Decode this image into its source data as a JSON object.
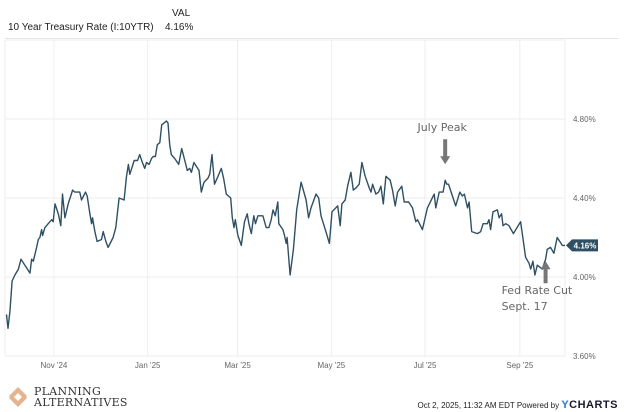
{
  "header": {
    "col_label": "VAL",
    "series_name": "10 Year Treasury Rate (I:10YTR)",
    "series_value": "4.16%"
  },
  "chart_data": {
    "type": "line",
    "title": "10 Year Treasury Rate (I:10YTR)",
    "xlabel": "",
    "ylabel": "",
    "x_unit": "days since start (approx. Sep 20, 2024)",
    "ylim": [
      3.6,
      4.96
    ],
    "xlim": [
      0,
      372
    ],
    "grid": true,
    "y_ticks": [
      {
        "value": 3.6,
        "label": "3.60%"
      },
      {
        "value": 4.0,
        "label": "4.00%"
      },
      {
        "value": 4.4,
        "label": "4.40%"
      },
      {
        "value": 4.8,
        "label": "4.80%"
      }
    ],
    "x_ticks": [
      {
        "value": 32.5,
        "label": "Nov '24"
      },
      {
        "value": 94.8,
        "label": "Jan '25"
      },
      {
        "value": 154.5,
        "label": "Mar '25"
      },
      {
        "value": 216.8,
        "label": "May '25"
      },
      {
        "value": 279,
        "label": "Jul '25"
      },
      {
        "value": 342,
        "label": "Sep '25"
      }
    ],
    "last_value_label": "4.16%",
    "line_color": "#2f4f63",
    "series": [
      {
        "name": "10 Year Treasury Rate",
        "points": [
          [
            1,
            3.81
          ],
          [
            2,
            3.74
          ],
          [
            3.3,
            3.83
          ],
          [
            4.7,
            3.98
          ],
          [
            6.6,
            4.01
          ],
          [
            8.9,
            4.04
          ],
          [
            10.6,
            4.09
          ],
          [
            16.6,
            4.02
          ],
          [
            17.7,
            4.09
          ],
          [
            18.8,
            4.08
          ],
          [
            21,
            4.15
          ],
          [
            22.1,
            4.19
          ],
          [
            23.2,
            4.2
          ],
          [
            24.3,
            4.24
          ],
          [
            25,
            4.21
          ],
          [
            26.5,
            4.25
          ],
          [
            28.7,
            4.27
          ],
          [
            31,
            4.29
          ],
          [
            32,
            4.28
          ],
          [
            33.2,
            4.37
          ],
          [
            35.4,
            4.32
          ],
          [
            37.1,
            4.26
          ],
          [
            38.2,
            4.42
          ],
          [
            39.8,
            4.3
          ],
          [
            42,
            4.37
          ],
          [
            44.9,
            4.44
          ],
          [
            46.4,
            4.43
          ],
          [
            49.7,
            4.43
          ],
          [
            50.8,
            4.39
          ],
          [
            53.5,
            4.43
          ],
          [
            54.6,
            4.41
          ],
          [
            56.4,
            4.32
          ],
          [
            57.5,
            4.27
          ],
          [
            58.1,
            4.3
          ],
          [
            59.7,
            4.23
          ],
          [
            61.2,
            4.18
          ],
          [
            64.1,
            4.19
          ],
          [
            65.2,
            4.23
          ],
          [
            67,
            4.18
          ],
          [
            68.5,
            4.15
          ],
          [
            71.8,
            4.2
          ],
          [
            73.6,
            4.25
          ],
          [
            75.8,
            4.4
          ],
          [
            79.1,
            4.39
          ],
          [
            80.7,
            4.51
          ],
          [
            82,
            4.57
          ],
          [
            82.9,
            4.52
          ],
          [
            85.8,
            4.59
          ],
          [
            88,
            4.59
          ],
          [
            89.5,
            4.62
          ],
          [
            91.3,
            4.58
          ],
          [
            92.8,
            4.55
          ],
          [
            94,
            4.58
          ],
          [
            95.7,
            4.57
          ],
          [
            97.3,
            4.6
          ],
          [
            98.4,
            4.61
          ],
          [
            99.9,
            4.61
          ],
          [
            101.2,
            4.67
          ],
          [
            102.8,
            4.68
          ],
          [
            104.1,
            4.77
          ],
          [
            107.2,
            4.79
          ],
          [
            108.3,
            4.78
          ],
          [
            109.4,
            4.67
          ],
          [
            110.5,
            4.62
          ],
          [
            112.7,
            4.6
          ],
          [
            115.4,
            4.57
          ],
          [
            117.4,
            4.65
          ],
          [
            119.8,
            4.58
          ],
          [
            121.1,
            4.54
          ],
          [
            122.7,
            4.55
          ],
          [
            123.8,
            4.53
          ],
          [
            125.5,
            4.58
          ],
          [
            128.9,
            4.54
          ],
          [
            130.4,
            4.43
          ],
          [
            132.2,
            4.48
          ],
          [
            134.8,
            4.5
          ],
          [
            136,
            4.52
          ],
          [
            137.5,
            4.62
          ],
          [
            139.2,
            4.47
          ],
          [
            141.5,
            4.51
          ],
          [
            143.7,
            4.55
          ],
          [
            145.2,
            4.5
          ],
          [
            147,
            4.42
          ],
          [
            149.9,
            4.4
          ],
          [
            151,
            4.3
          ],
          [
            152.1,
            4.25
          ],
          [
            153,
            4.29
          ],
          [
            154.7,
            4.21
          ],
          [
            157,
            4.16
          ],
          [
            159.1,
            4.28
          ],
          [
            160.9,
            4.32
          ],
          [
            162,
            4.27
          ],
          [
            163.6,
            4.22
          ],
          [
            165.3,
            4.31
          ],
          [
            166.4,
            4.27
          ],
          [
            168,
            4.31
          ],
          [
            171.3,
            4.31
          ],
          [
            173.5,
            4.25
          ],
          [
            175.3,
            4.25
          ],
          [
            176.8,
            4.29
          ],
          [
            178,
            4.34
          ],
          [
            179.5,
            4.31
          ],
          [
            181.2,
            4.38
          ],
          [
            181.9,
            4.27
          ],
          [
            184.6,
            4.24
          ],
          [
            185.7,
            4.21
          ],
          [
            186.8,
            4.17
          ],
          [
            187.4,
            4.2
          ],
          [
            189.4,
            4.01
          ],
          [
            191.6,
            4.14
          ],
          [
            193.8,
            4.34
          ],
          [
            196.7,
            4.48
          ],
          [
            200,
            4.39
          ],
          [
            201.7,
            4.3
          ],
          [
            203.3,
            4.35
          ],
          [
            206.6,
            4.42
          ],
          [
            208.4,
            4.4
          ],
          [
            209.9,
            4.31
          ],
          [
            213.2,
            4.23
          ],
          [
            215.5,
            4.17
          ],
          [
            217.2,
            4.33
          ],
          [
            221,
            4.36
          ],
          [
            222.7,
            4.26
          ],
          [
            223.8,
            4.37
          ],
          [
            226,
            4.39
          ],
          [
            227.6,
            4.46
          ],
          [
            229.8,
            4.53
          ],
          [
            231.4,
            4.44
          ],
          [
            233.1,
            4.45
          ],
          [
            235.3,
            4.47
          ],
          [
            237.1,
            4.58
          ],
          [
            239.3,
            4.51
          ],
          [
            242,
            4.45
          ],
          [
            243.1,
            4.43
          ],
          [
            244.2,
            4.47
          ],
          [
            246.4,
            4.42
          ],
          [
            248.2,
            4.43
          ],
          [
            249.7,
            4.46
          ],
          [
            251.3,
            4.37
          ],
          [
            253,
            4.51
          ],
          [
            255.9,
            4.49
          ],
          [
            257.4,
            4.44
          ],
          [
            259.2,
            4.36
          ],
          [
            260.8,
            4.43
          ],
          [
            263.6,
            4.46
          ],
          [
            265.2,
            4.38
          ],
          [
            268.1,
            4.38
          ],
          [
            270.7,
            4.35
          ],
          [
            272.9,
            4.28
          ],
          [
            274,
            4.29
          ],
          [
            277.3,
            4.24
          ],
          [
            280.6,
            4.35
          ],
          [
            285.1,
            4.42
          ],
          [
            286.2,
            4.35
          ],
          [
            288.4,
            4.43
          ],
          [
            291,
            4.43
          ],
          [
            292.4,
            4.49
          ],
          [
            293.5,
            4.47
          ],
          [
            294.6,
            4.47
          ],
          [
            296.8,
            4.42
          ],
          [
            299.4,
            4.36
          ],
          [
            302.1,
            4.43
          ],
          [
            303.8,
            4.41
          ],
          [
            305.2,
            4.42
          ],
          [
            307.2,
            4.35
          ],
          [
            308.3,
            4.38
          ],
          [
            310,
            4.23
          ],
          [
            313.8,
            4.22
          ],
          [
            316,
            4.23
          ],
          [
            317.6,
            4.27
          ],
          [
            320.4,
            4.27
          ],
          [
            321.5,
            4.29
          ],
          [
            322.6,
            4.24
          ],
          [
            324.2,
            4.33
          ],
          [
            327.1,
            4.34
          ],
          [
            328.2,
            4.3
          ],
          [
            329.9,
            4.32
          ],
          [
            330.8,
            4.26
          ],
          [
            332.6,
            4.27
          ],
          [
            334.8,
            4.26
          ],
          [
            337.7,
            4.22
          ],
          [
            342.5,
            4.28
          ],
          [
            345.8,
            4.1
          ],
          [
            348.1,
            4.07
          ],
          [
            349.2,
            4.04
          ],
          [
            350.7,
            4.08
          ],
          [
            352,
            4.01
          ],
          [
            353.6,
            4.06
          ],
          [
            356.9,
            4.04
          ],
          [
            359.1,
            4.09
          ],
          [
            360.2,
            4.14
          ],
          [
            362.4,
            4.15
          ],
          [
            364.6,
            4.12
          ],
          [
            366.8,
            4.2
          ],
          [
            370.2,
            4.16
          ],
          [
            372,
            4.16
          ]
        ]
      }
    ],
    "annotations": [
      {
        "text": "July Peak",
        "at_x": 292.4,
        "at_y": 4.49,
        "arrow": "down"
      },
      {
        "text_lines": [
          "Fed Rate Cut",
          "Sept. 17"
        ],
        "at_x": 359.1,
        "at_y": 4.09,
        "arrow": "up"
      }
    ]
  },
  "footer": {
    "timestamp": "Oct 2, 2025, 11:32 AM EDT",
    "powered_by": "Powered by",
    "brand_y": "Y",
    "brand_rest": "CHARTS",
    "logo_line1": "PLANNING",
    "logo_line2": "ALTERNATIVES"
  }
}
